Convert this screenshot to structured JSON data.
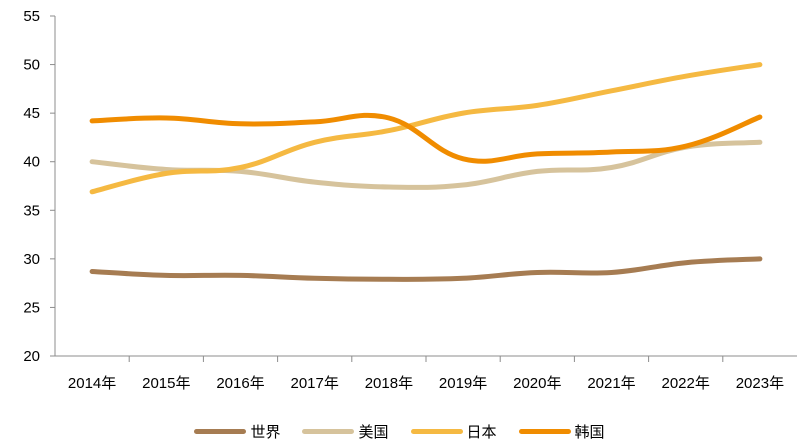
{
  "chart_data": {
    "type": "line",
    "categories": [
      "2014年",
      "2015年",
      "2016年",
      "2017年",
      "2018年",
      "2019年",
      "2020年",
      "2021年",
      "2022年",
      "2023年"
    ],
    "yticks": [
      20,
      25,
      30,
      35,
      40,
      45,
      50,
      55
    ],
    "ylim": [
      20,
      55
    ],
    "grid": false,
    "legend_position": "bottom",
    "series": [
      {
        "name": "世界",
        "color": "#a67c52",
        "values": [
          28.7,
          28.3,
          28.3,
          28.0,
          27.9,
          28.0,
          28.6,
          28.6,
          29.6,
          30.0
        ]
      },
      {
        "name": "美国",
        "color": "#d6c39c",
        "values": [
          40.0,
          39.2,
          39.0,
          37.9,
          37.4,
          37.6,
          39.0,
          39.4,
          41.5,
          42.0
        ]
      },
      {
        "name": "日本",
        "color": "#f5b942",
        "values": [
          36.9,
          38.8,
          39.4,
          42.0,
          43.2,
          45.0,
          45.8,
          47.3,
          48.8,
          50.0
        ]
      },
      {
        "name": "韩国",
        "color": "#f08c00",
        "values": [
          44.2,
          44.5,
          43.9,
          44.1,
          44.5,
          40.3,
          40.8,
          41.0,
          41.6,
          44.6
        ]
      }
    ]
  }
}
